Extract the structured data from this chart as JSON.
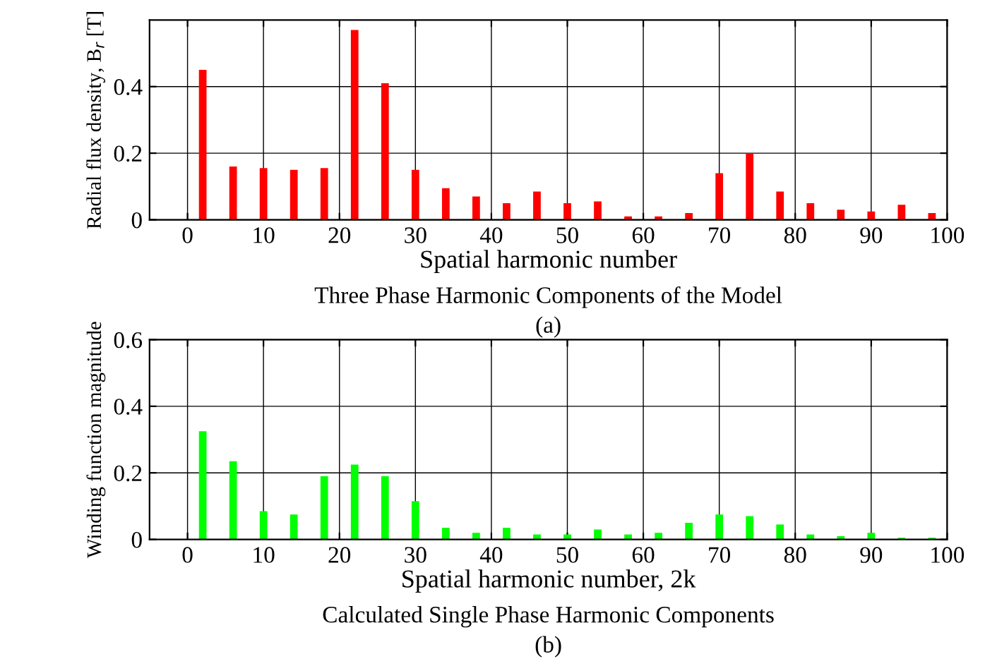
{
  "chart_data": [
    {
      "type": "bar",
      "ylabel": "Radial flux density, B$_{r}$ [T]",
      "xlabel": "Spatial harmonic number",
      "annotations": [
        "Three Phase Harmonic Components of the Model",
        "(a)"
      ],
      "x": [
        2,
        6,
        10,
        14,
        18,
        22,
        26,
        30,
        34,
        38,
        42,
        46,
        50,
        54,
        58,
        62,
        66,
        70,
        74,
        78,
        82,
        86,
        90,
        94,
        98
      ],
      "series": [
        {
          "color": "#ff0000",
          "values": [
            0.45,
            0.16,
            0.155,
            0.15,
            0.155,
            0.57,
            0.41,
            0.15,
            0.095,
            0.07,
            0.05,
            0.085,
            0.05,
            0.055,
            0.01,
            0.01,
            0.02,
            0.14,
            0.2,
            0.085,
            0.05,
            0.03,
            0.025,
            0.045,
            0.02
          ]
        }
      ],
      "xlim": [
        -5,
        100
      ],
      "xticks": [
        0,
        10,
        20,
        30,
        40,
        50,
        60,
        70,
        80,
        90,
        100
      ],
      "ylim": [
        0,
        0.6
      ],
      "yticks": [
        0,
        0.2,
        0.4
      ],
      "grid": true
    },
    {
      "type": "bar",
      "ylabel": "Winding function magnitude",
      "xlabel": "Spatial harmonic number, 2k",
      "annotations": [
        "Calculated Single Phase Harmonic Components",
        "(b)"
      ],
      "x": [
        2,
        6,
        10,
        14,
        18,
        22,
        26,
        30,
        34,
        38,
        42,
        46,
        50,
        54,
        58,
        62,
        66,
        70,
        74,
        78,
        82,
        86,
        90,
        94,
        98
      ],
      "series": [
        {
          "color": "#00ff00",
          "values": [
            0.325,
            0.235,
            0.085,
            0.075,
            0.19,
            0.225,
            0.19,
            0.115,
            0.035,
            0.02,
            0.035,
            0.015,
            0.015,
            0.03,
            0.015,
            0.02,
            0.05,
            0.075,
            0.07,
            0.045,
            0.015,
            0.01,
            0.02,
            0.005,
            0.005
          ]
        }
      ],
      "xlim": [
        -5,
        100
      ],
      "xticks": [
        0,
        10,
        20,
        30,
        40,
        50,
        60,
        70,
        80,
        90,
        100
      ],
      "ylim": [
        0,
        0.6
      ],
      "yticks": [
        0,
        0.2,
        0.4,
        0.6
      ],
      "grid": true
    }
  ]
}
